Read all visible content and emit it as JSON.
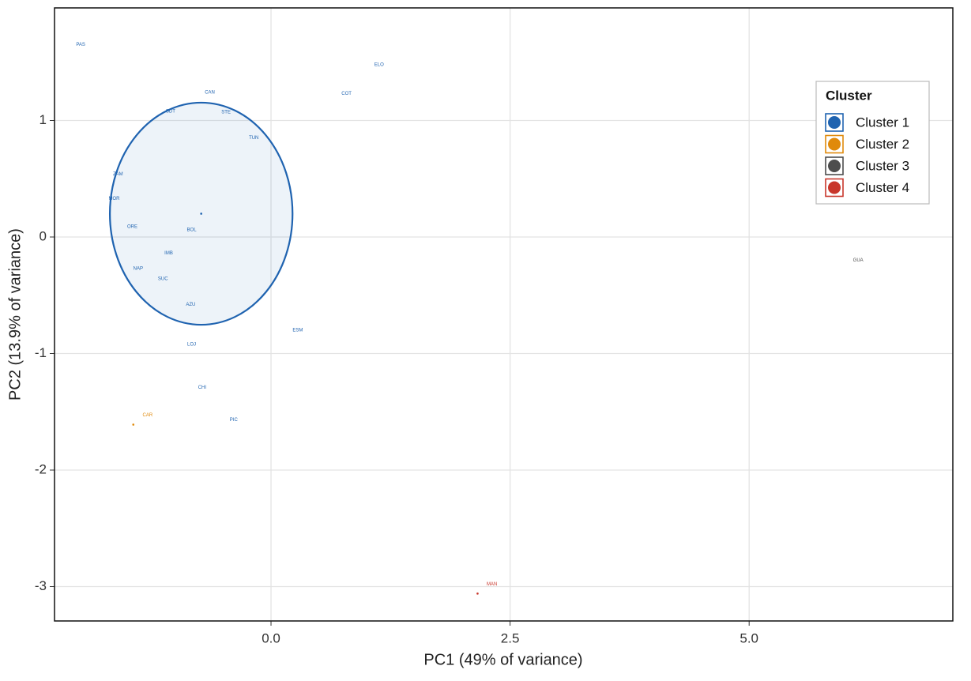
{
  "chart_data": {
    "type": "scatter",
    "x_label": "PC1 (49% of variance)",
    "y_label": "PC2 (13.9% of variance)",
    "xlim": [
      -2.264,
      7.13
    ],
    "ylim": [
      -3.295,
      1.966
    ],
    "xticks": [
      {
        "value": 0,
        "label": "0.0"
      },
      2.5,
      {
        "value": 5,
        "label": "5.0"
      }
    ],
    "yticks": [
      -3,
      -2,
      -1,
      0,
      1
    ],
    "grid": true,
    "legend_title": "Cluster",
    "legend_position": "upper right",
    "series": [
      {
        "name": "Cluster 1",
        "color": "#1f63b0",
        "labels": [
          "PAS",
          "ELO",
          "CAN",
          "COT",
          "SDT",
          "STE",
          "TUN",
          "ZAM",
          "MOR",
          "ORE",
          "BOL",
          "IMB",
          "NAP",
          "SUC",
          "AZU",
          "ESM",
          "LOJ",
          "CHI",
          "PIC"
        ],
        "x": [
          -1.99,
          1.13,
          -0.64,
          0.79,
          -1.05,
          -0.47,
          -0.18,
          -1.6,
          -1.64,
          -1.45,
          -0.83,
          -1.07,
          -1.39,
          -1.13,
          -0.84,
          0.28,
          -0.83,
          -0.72,
          -0.39
        ],
        "y": [
          1.65,
          1.48,
          1.24,
          1.23,
          1.08,
          1.07,
          0.85,
          0.54,
          0.33,
          0.09,
          0.06,
          -0.14,
          -0.27,
          -0.36,
          -0.58,
          -0.8,
          -0.92,
          -1.29,
          -1.57
        ],
        "centroid": [
          -0.73,
          0.2
        ],
        "ellipse": {
          "cx": -0.73,
          "cy": 0.2,
          "rx": 0.955,
          "ry": 0.953
        }
      },
      {
        "name": "Cluster 2",
        "color": "#e08a0b",
        "labels": [
          "CAR"
        ],
        "x": [
          -1.29
        ],
        "y": [
          -1.53
        ],
        "centroid": [
          -1.44,
          -1.61
        ]
      },
      {
        "name": "Cluster 3",
        "color": "#4d4d4d",
        "labels": [
          "GUA"
        ],
        "x": [
          6.14
        ],
        "y": [
          -0.2
        ]
      },
      {
        "name": "Cluster 4",
        "color": "#c8362b",
        "labels": [
          "MAN"
        ],
        "x": [
          2.31
        ],
        "y": [
          -2.98
        ],
        "centroid": [
          2.16,
          -3.06
        ]
      }
    ]
  }
}
